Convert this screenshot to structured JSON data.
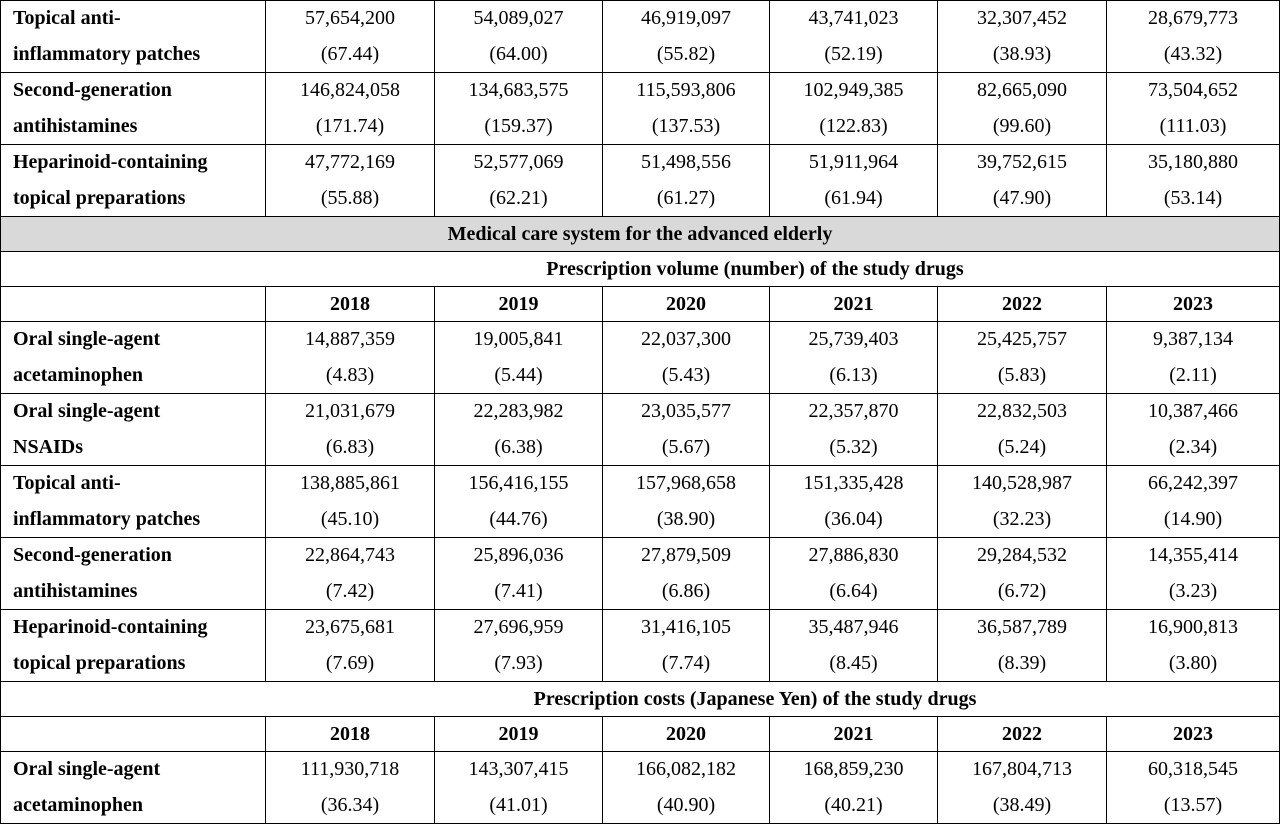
{
  "top_rows": [
    {
      "label": [
        "Topical anti-",
        "inflammatory patches"
      ],
      "values": [
        [
          "57,654,200",
          "(67.44)"
        ],
        [
          "54,089,027",
          "(64.00)"
        ],
        [
          "46,919,097",
          "(55.82)"
        ],
        [
          "43,741,023",
          "(52.19)"
        ],
        [
          "32,307,452",
          "(38.93)"
        ],
        [
          "28,679,773",
          "(43.32)"
        ]
      ]
    },
    {
      "label": [
        "Second-generation",
        "antihistamines"
      ],
      "values": [
        [
          "146,824,058",
          "(171.74)"
        ],
        [
          "134,683,575",
          "(159.37)"
        ],
        [
          "115,593,806",
          "(137.53)"
        ],
        [
          "102,949,385",
          "(122.83)"
        ],
        [
          "82,665,090",
          "(99.60)"
        ],
        [
          "73,504,652",
          "(111.03)"
        ]
      ]
    },
    {
      "label": [
        "Heparinoid-containing",
        "topical preparations"
      ],
      "values": [
        [
          "47,772,169",
          "(55.88)"
        ],
        [
          "52,577,069",
          "(62.21)"
        ],
        [
          "51,498,556",
          "(61.27)"
        ],
        [
          "51,911,964",
          "(61.94)"
        ],
        [
          "39,752,615",
          "(47.90)"
        ],
        [
          "35,180,880",
          "(53.14)"
        ]
      ]
    }
  ],
  "section_title": "Medical care system for the advanced elderly",
  "volume": {
    "title": "Prescription volume (number) of the study drugs",
    "years": [
      "2018",
      "2019",
      "2020",
      "2021",
      "2022",
      "2023"
    ],
    "rows": [
      {
        "label": [
          "Oral single-agent",
          "acetaminophen"
        ],
        "values": [
          [
            "14,887,359",
            "(4.83)"
          ],
          [
            "19,005,841",
            "(5.44)"
          ],
          [
            "22,037,300",
            "(5.43)"
          ],
          [
            "25,739,403",
            "(6.13)"
          ],
          [
            "25,425,757",
            "(5.83)"
          ],
          [
            "9,387,134",
            "(2.11)"
          ]
        ]
      },
      {
        "label": [
          "Oral single-agent",
          "NSAIDs"
        ],
        "values": [
          [
            "21,031,679",
            "(6.83)"
          ],
          [
            "22,283,982",
            "(6.38)"
          ],
          [
            "23,035,577",
            "(5.67)"
          ],
          [
            "22,357,870",
            "(5.32)"
          ],
          [
            "22,832,503",
            "(5.24)"
          ],
          [
            "10,387,466",
            "(2.34)"
          ]
        ]
      },
      {
        "label": [
          "Topical anti-",
          "inflammatory patches"
        ],
        "values": [
          [
            "138,885,861",
            "(45.10)"
          ],
          [
            "156,416,155",
            "(44.76)"
          ],
          [
            "157,968,658",
            "(38.90)"
          ],
          [
            "151,335,428",
            "(36.04)"
          ],
          [
            "140,528,987",
            "(32.23)"
          ],
          [
            "66,242,397",
            "(14.90)"
          ]
        ]
      },
      {
        "label": [
          "Second-generation",
          "antihistamines"
        ],
        "values": [
          [
            "22,864,743",
            "(7.42)"
          ],
          [
            "25,896,036",
            "(7.41)"
          ],
          [
            "27,879,509",
            "(6.86)"
          ],
          [
            "27,886,830",
            "(6.64)"
          ],
          [
            "29,284,532",
            "(6.72)"
          ],
          [
            "14,355,414",
            "(3.23)"
          ]
        ]
      },
      {
        "label": [
          "Heparinoid-containing",
          "topical preparations"
        ],
        "values": [
          [
            "23,675,681",
            "(7.69)"
          ],
          [
            "27,696,959",
            "(7.93)"
          ],
          [
            "31,416,105",
            "(7.74)"
          ],
          [
            "35,487,946",
            "(8.45)"
          ],
          [
            "36,587,789",
            "(8.39)"
          ],
          [
            "16,900,813",
            "(3.80)"
          ]
        ]
      }
    ]
  },
  "costs": {
    "title": "Prescription costs (Japanese Yen) of the study drugs",
    "years": [
      "2018",
      "2019",
      "2020",
      "2021",
      "2022",
      "2023"
    ],
    "rows": [
      {
        "label": [
          "Oral single-agent",
          "acetaminophen"
        ],
        "values": [
          [
            "111,930,718",
            "(36.34)"
          ],
          [
            "143,307,415",
            "(41.01)"
          ],
          [
            "166,082,182",
            "(40.90)"
          ],
          [
            "168,859,230",
            "(40.21)"
          ],
          [
            "167,804,713",
            "(38.49)"
          ],
          [
            "60,318,545",
            "(13.57)"
          ]
        ]
      }
    ]
  }
}
